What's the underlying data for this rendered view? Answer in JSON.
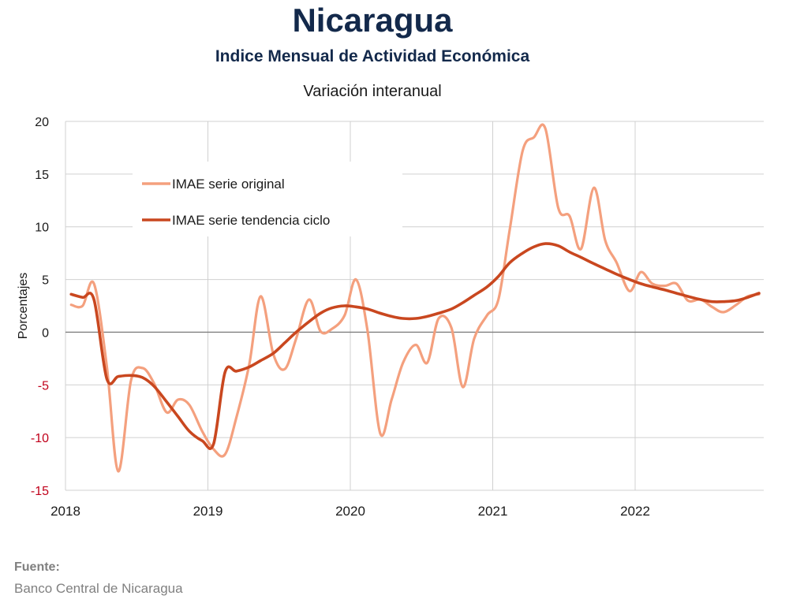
{
  "header": {
    "title": "Nicaragua",
    "subtitle": "Indice Mensual de  Actividad Económica",
    "subsubtitle": "Variación interanual"
  },
  "source": {
    "label": "Fuente:",
    "text": "Banco Central de Nicaragua"
  },
  "colors": {
    "original": "#f4a07e",
    "trend": "#c9471f",
    "grid": "#d0d0d0",
    "zero": "#7f7f7f",
    "negative_tick": "#c0001a"
  },
  "chart_data": {
    "type": "line",
    "title": "Variación interanual",
    "xlabel": "",
    "ylabel": "Porcentajes",
    "ylim": [
      -15,
      20
    ],
    "yticks": [
      20,
      15,
      10,
      5,
      0,
      -5,
      -10,
      -15
    ],
    "xlim": [
      2018,
      2022.9
    ],
    "xticks": [
      2018,
      2019,
      2020,
      2021,
      2022
    ],
    "grid": true,
    "legend": "top-left",
    "series": [
      {
        "name": "IMAE serie original",
        "key": "original",
        "x": [
          2018.04,
          2018.12,
          2018.2,
          2018.29,
          2018.37,
          2018.46,
          2018.54,
          2018.62,
          2018.71,
          2018.79,
          2018.87,
          2018.96,
          2019.04,
          2019.12,
          2019.2,
          2019.29,
          2019.37,
          2019.46,
          2019.54,
          2019.62,
          2019.71,
          2019.79,
          2019.87,
          2019.96,
          2020.04,
          2020.12,
          2020.21,
          2020.29,
          2020.37,
          2020.46,
          2020.54,
          2020.62,
          2020.71,
          2020.79,
          2020.87,
          2020.96,
          2021.04,
          2021.12,
          2021.21,
          2021.29,
          2021.37,
          2021.46,
          2021.54,
          2021.62,
          2021.71,
          2021.79,
          2021.87,
          2021.96,
          2022.04,
          2022.12,
          2022.21,
          2022.29,
          2022.37,
          2022.46,
          2022.54,
          2022.62,
          2022.71,
          2022.79,
          2022.87
        ],
        "y": [
          2.6,
          2.5,
          4.6,
          -3.2,
          -13.2,
          -4.6,
          -3.4,
          -4.8,
          -7.6,
          -6.4,
          -6.9,
          -9.4,
          -11.1,
          -11.6,
          -8.1,
          -3.1,
          3.4,
          -2.1,
          -3.5,
          -0.6,
          3.1,
          0.1,
          0.3,
          1.6,
          5.0,
          0.2,
          -9.6,
          -6.4,
          -2.9,
          -1.2,
          -2.9,
          1.3,
          0.4,
          -5.2,
          -0.6,
          1.6,
          3.1,
          9.8,
          17.2,
          18.5,
          19.3,
          11.8,
          11.0,
          7.9,
          13.7,
          8.7,
          6.6,
          3.9,
          5.7,
          4.6,
          4.4,
          4.6,
          3.0,
          3.1,
          2.4,
          1.9,
          2.6,
          3.4,
          3.6
        ]
      },
      {
        "name": "IMAE serie  tendencia ciclo",
        "key": "trend",
        "x": [
          2018.04,
          2018.12,
          2018.2,
          2018.29,
          2018.37,
          2018.46,
          2018.54,
          2018.62,
          2018.71,
          2018.79,
          2018.87,
          2018.96,
          2019.04,
          2019.12,
          2019.2,
          2019.29,
          2019.37,
          2019.46,
          2019.54,
          2019.62,
          2019.71,
          2019.79,
          2019.87,
          2019.96,
          2020.04,
          2020.12,
          2020.21,
          2020.29,
          2020.37,
          2020.46,
          2020.54,
          2020.62,
          2020.71,
          2020.79,
          2020.87,
          2020.96,
          2021.04,
          2021.12,
          2021.21,
          2021.29,
          2021.37,
          2021.46,
          2021.54,
          2021.62,
          2021.71,
          2021.79,
          2021.87,
          2021.96,
          2022.04,
          2022.12,
          2022.21,
          2022.29,
          2022.37,
          2022.46,
          2022.54,
          2022.62,
          2022.71,
          2022.79,
          2022.87
        ],
        "y": [
          3.6,
          3.3,
          3.1,
          -4.4,
          -4.2,
          -4.1,
          -4.3,
          -5.1,
          -6.6,
          -8.0,
          -9.4,
          -10.3,
          -10.6,
          -3.8,
          -3.7,
          -3.3,
          -2.7,
          -2.0,
          -1.0,
          0.0,
          1.0,
          1.8,
          2.3,
          2.5,
          2.4,
          2.2,
          1.8,
          1.5,
          1.3,
          1.3,
          1.5,
          1.8,
          2.2,
          2.8,
          3.5,
          4.3,
          5.3,
          6.6,
          7.5,
          8.1,
          8.4,
          8.2,
          7.6,
          7.1,
          6.5,
          6.0,
          5.5,
          5.0,
          4.6,
          4.3,
          4.0,
          3.7,
          3.4,
          3.1,
          2.9,
          2.9,
          3.0,
          3.3,
          3.7
        ]
      }
    ]
  }
}
